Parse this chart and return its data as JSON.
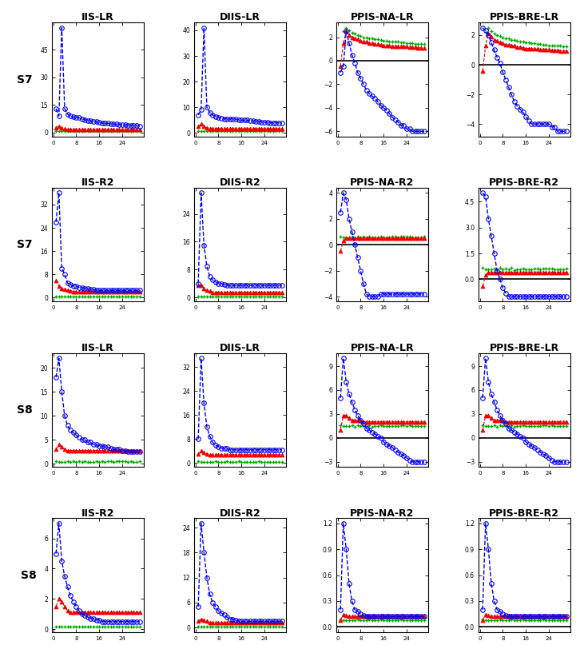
{
  "titles": [
    [
      "IIS-LR",
      "DIIS-LR",
      "PPIS-NA-LR",
      "PPIS-BRE-LR"
    ],
    [
      "IIS-R2",
      "DIIS-R2",
      "PPIS-NA-R2",
      "PPIS-BRE-R2"
    ],
    [
      "IIS-LR",
      "DIIS-LR",
      "PPIS-NA-LR",
      "PPIS-BRE-LR"
    ],
    [
      "IIS-R2",
      "DIIS-R2",
      "PPIS-NA-R2",
      "PPIS-BRE-R2"
    ]
  ],
  "row_labels": [
    "S7",
    "S7",
    "S8",
    "S8"
  ],
  "blue_color": "#0000EE",
  "red_color": "#EE0000",
  "green_color": "#00AA00",
  "n_pts": 30
}
